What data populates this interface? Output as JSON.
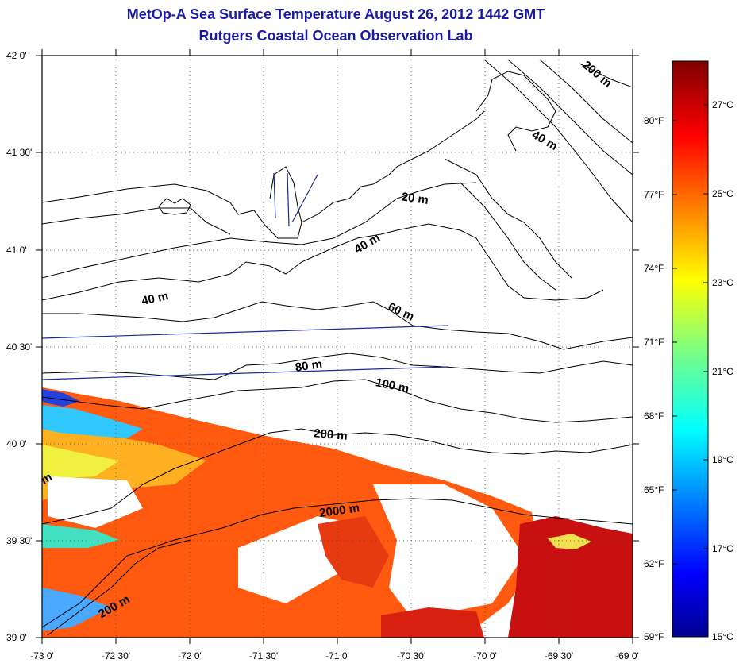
{
  "title": {
    "line1": "MetOp-A Sea Surface Temperature August 26, 2012 1442 GMT",
    "line2": "Rutgers Coastal Ocean Observation Lab"
  },
  "map": {
    "lon_range": [
      -73.0,
      -69.0
    ],
    "lat_range": [
      39.0,
      42.0
    ],
    "grid": "dotted",
    "lat_tick_labels": [
      "42 0'",
      "41 30'",
      "41 0'",
      "40 30'",
      "40 0'",
      "39 30'",
      "39 0'"
    ],
    "lon_tick_labels": [
      "-73 0'",
      "-72 30'",
      "-72 0'",
      "-71 30'",
      "-71 0'",
      "-70 30'",
      "-70 0'",
      "-69 30'",
      "-69 0'"
    ],
    "contour_labels": [
      "200 m",
      "40 m",
      "20 m",
      "40 m",
      "40 m",
      "60 m",
      "80 m",
      "100 m",
      "200 m",
      "2000 m",
      "200 m",
      "m"
    ],
    "colors": {
      "coastline": "#000000",
      "transect": "#1a2a9a",
      "title": "#1a1aa8"
    }
  },
  "colorbar": {
    "colormap": "jet",
    "celsius_range": [
      15,
      28
    ],
    "celsius_labels": [
      "27°C",
      "25°C",
      "23°C",
      "21°C",
      "19°C",
      "17°C",
      "15°C"
    ],
    "fahrenheit_labels": [
      "80°F",
      "77°F",
      "74°F",
      "71°F",
      "68°F",
      "65°F",
      "62°F",
      "59°F"
    ]
  }
}
